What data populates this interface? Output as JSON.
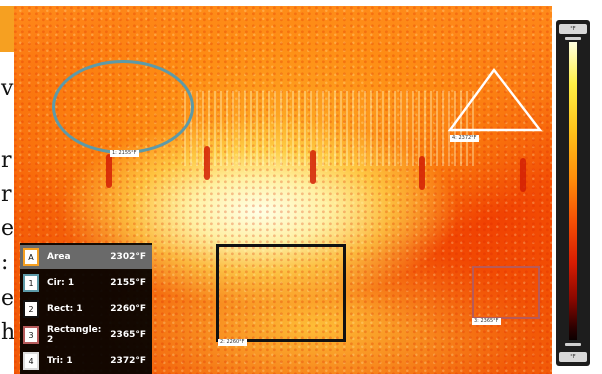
{
  "sidebar_text": {
    "letters": [
      "v",
      "r",
      "r",
      "e",
      ":",
      "e",
      "h"
    ]
  },
  "overlays": {
    "circle_label": "1: 2155°F",
    "rect_label": "2: 2260°F",
    "rect2_label": "3: 2365°F",
    "triangle_label": "4: 2372°F"
  },
  "measurements": {
    "rows": [
      {
        "badge": "A",
        "name": "Area",
        "value": "2302°F",
        "badge_color": "#ffffff",
        "border_color": "#f6a021"
      },
      {
        "badge": "1",
        "name": "Cir: 1",
        "value": "2155°F",
        "badge_color": "#ffffff",
        "border_color": "#5d9aa8"
      },
      {
        "badge": "2",
        "name": "Rect: 1",
        "value": "2260°F",
        "badge_color": "#ffffff",
        "border_color": "#111111"
      },
      {
        "badge": "3",
        "name": "Rectangle: 2",
        "value": "2365°F",
        "badge_color": "#ffffff",
        "border_color": "#b65a5a"
      },
      {
        "badge": "4",
        "name": "Tri: 1",
        "value": "2372°F",
        "badge_color": "#ffffff",
        "border_color": "#dddddd"
      }
    ]
  },
  "scale": {
    "top_label": "°F",
    "bottom_label": "°F"
  }
}
